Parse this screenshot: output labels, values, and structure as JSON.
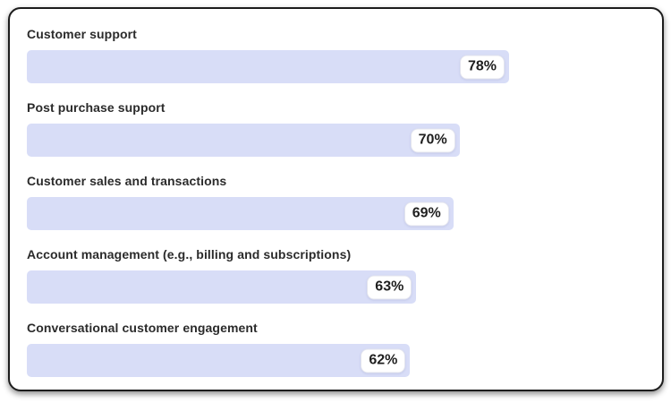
{
  "chart_data": {
    "type": "bar",
    "orientation": "horizontal",
    "title": "",
    "categories": [
      "Customer support",
      "Post purchase support",
      "Customer sales and transactions",
      "Account management (e.g., billing and subscriptions)",
      "Conversational customer engagement"
    ],
    "values": [
      78,
      70,
      69,
      63,
      62
    ],
    "display_values": [
      "78%",
      "70%",
      "69%",
      "63%",
      "62%"
    ],
    "value_suffix": "%",
    "xlim": [
      0,
      100
    ],
    "grid": false,
    "legend": "none",
    "colors": {
      "bar_fill": "#d8ddf7",
      "value_badge_bg": "#ffffff",
      "value_badge_border": "#e3e4ee",
      "label_text": "#2b2b2b",
      "value_text": "#1f1f1f",
      "card_bg": "#ffffff",
      "card_border": "#1c1c1c"
    }
  }
}
